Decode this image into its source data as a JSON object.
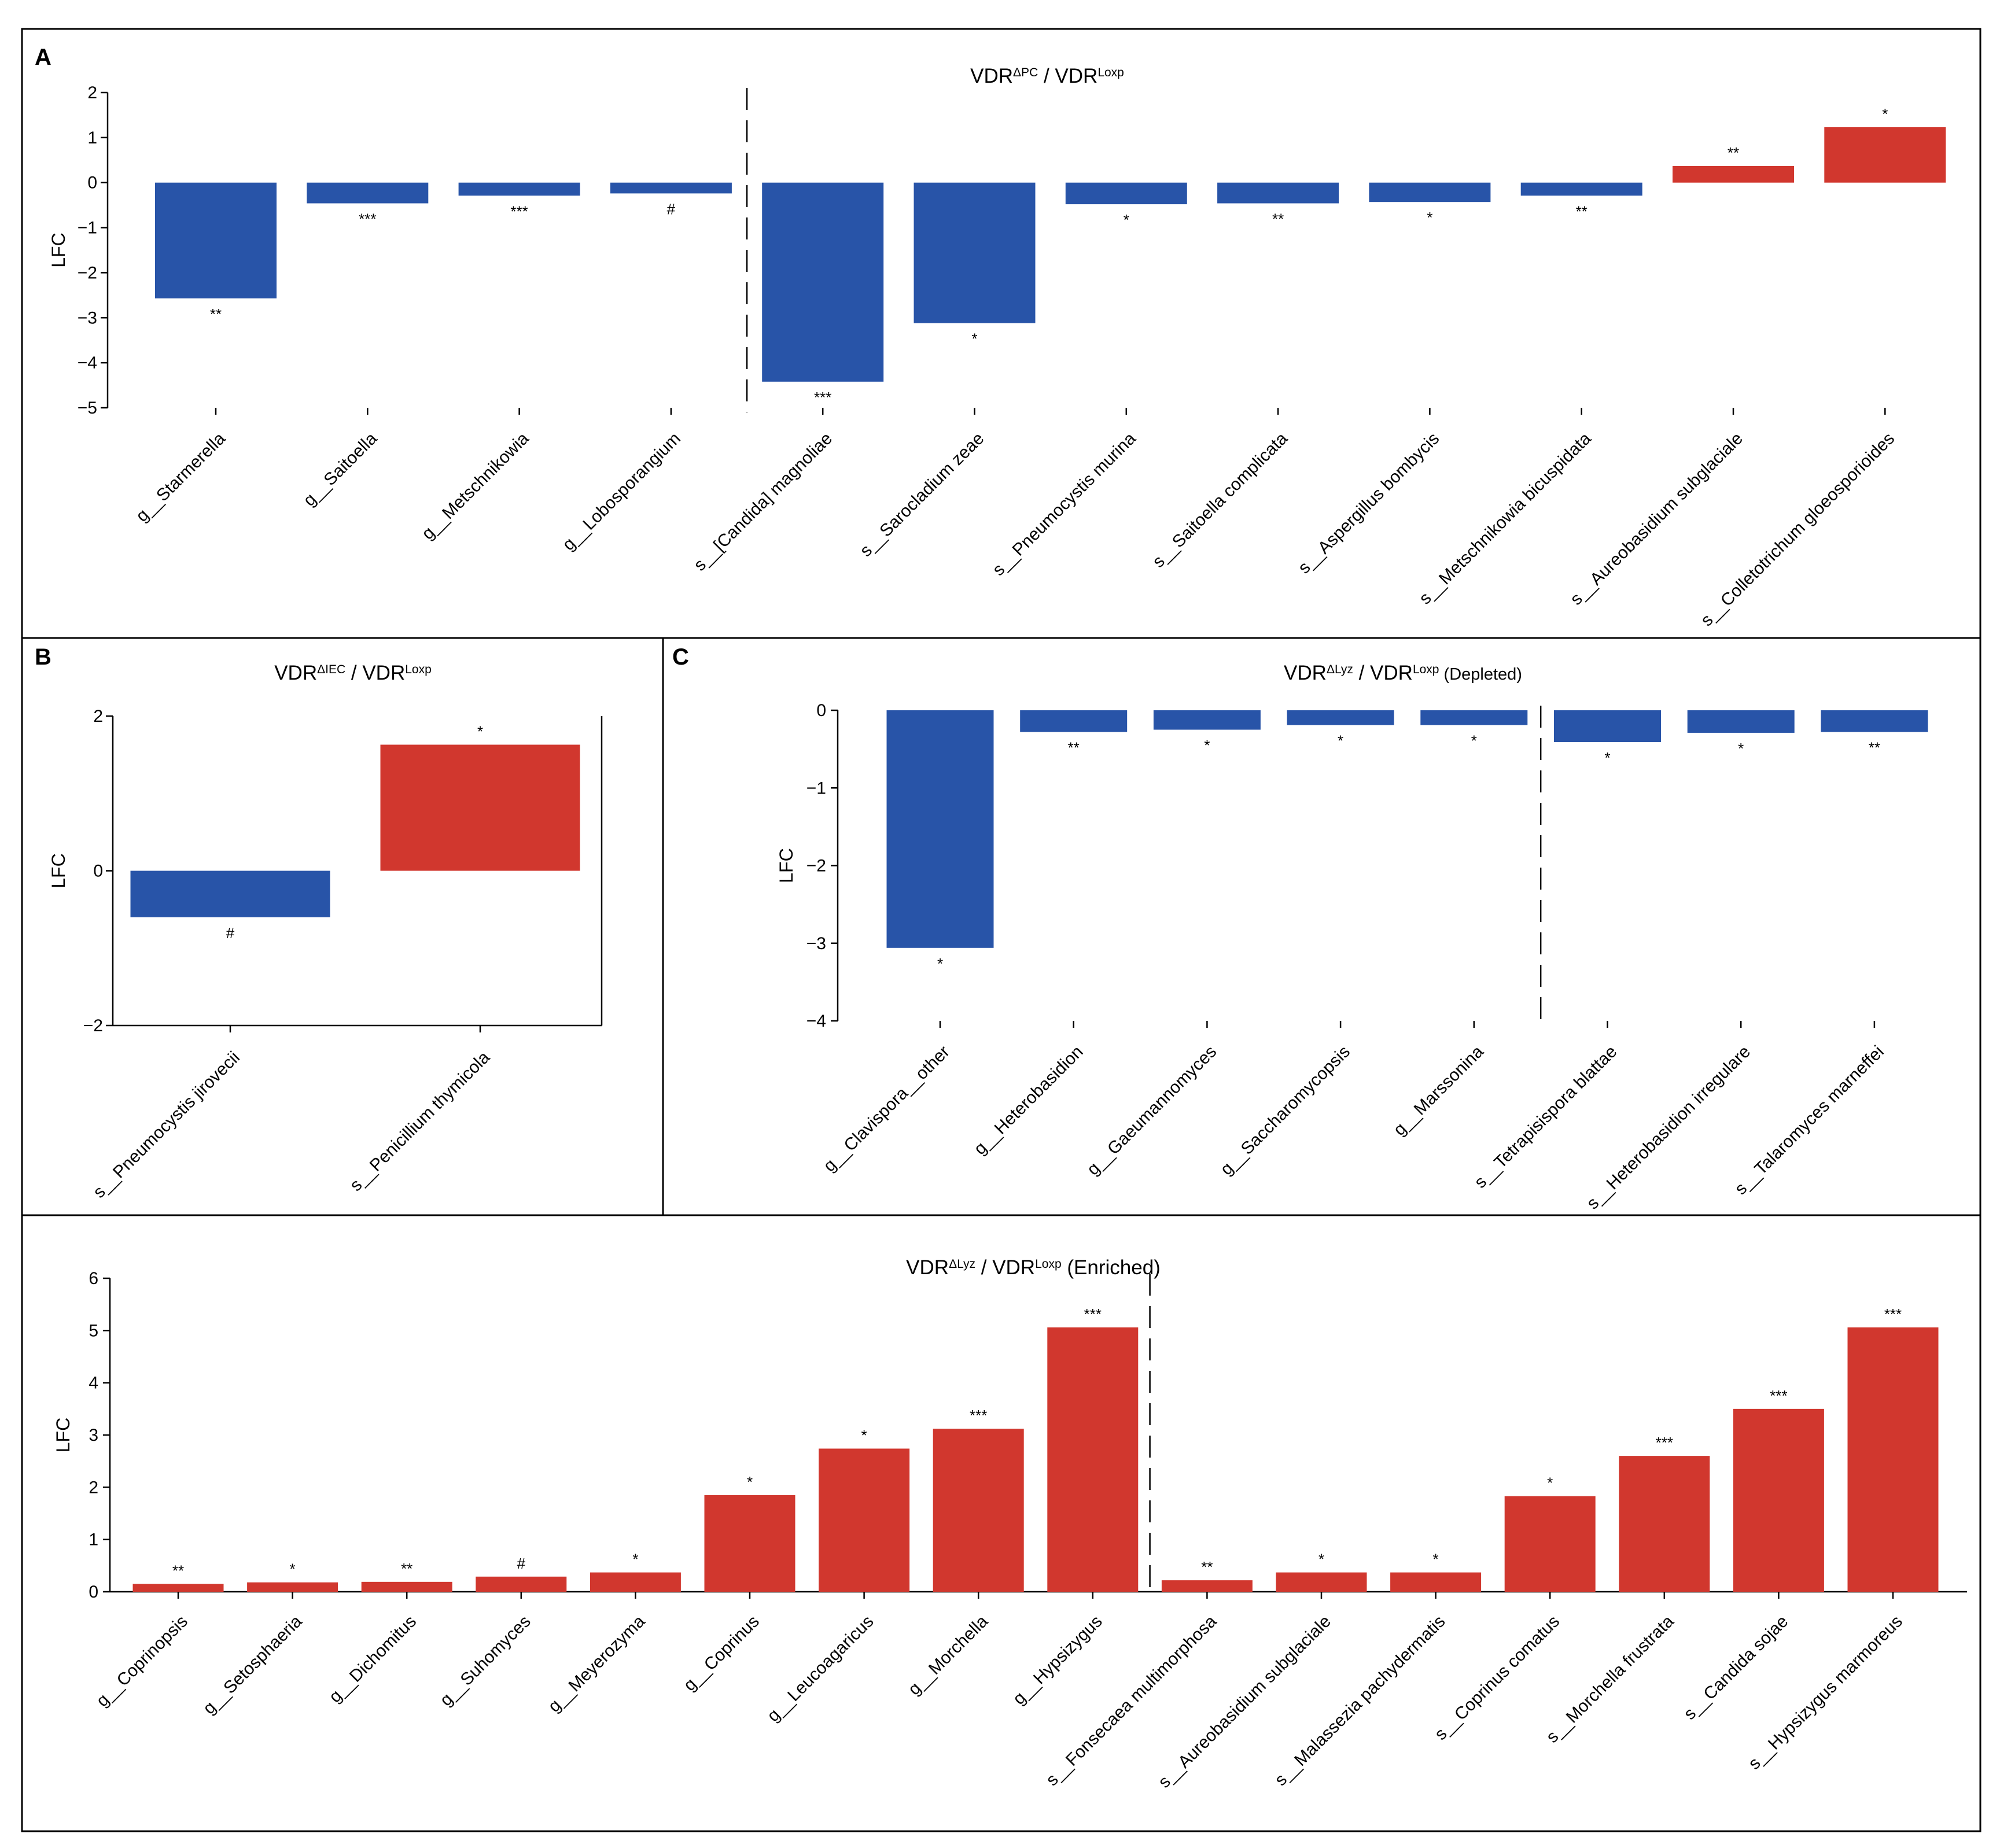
{
  "colors": {
    "decrease": "#2854a8",
    "increase": "#d1372e"
  },
  "chart_data": [
    {
      "id": "A",
      "panel_label": "A",
      "type": "bar",
      "title": {
        "main1": "VDR",
        "sup1": "ΔPC",
        "main2": " / VDR",
        "sup2": "Loxp",
        "suffix": ""
      },
      "ylabel": "LFC",
      "ylim": [
        -5,
        2
      ],
      "yticks": [
        2,
        1,
        0,
        -1,
        -2,
        -3,
        -4,
        -5
      ],
      "yticklabels": [
        "2",
        "1",
        "0",
        "−1",
        "−2",
        "−3",
        "−4",
        "−5"
      ],
      "divider_after": 4,
      "categories": [
        "g__Starmerella",
        "g__Saitoella",
        "g__Metschnikowia",
        "g__Lobosporangium",
        "s__[Candida] magnoliae",
        "s__Sarocladium zeae",
        "s__Pneumocystis murina",
        "s__Saitoella complicata",
        "s__Aspergillus bombycis",
        "s__Metschnikowia bicuspidata",
        "s__Aureobasidium subglaciale",
        "s__Colletotrichum gloeosporioides"
      ],
      "values": [
        -2.57,
        -0.46,
        -0.29,
        -0.24,
        -4.42,
        -3.12,
        -0.48,
        -0.46,
        -0.43,
        -0.29,
        0.37,
        1.23
      ],
      "significance": [
        "**",
        "***",
        "***",
        "#",
        "***",
        "*",
        "*",
        "**",
        "*",
        "**",
        "**",
        "*"
      ]
    },
    {
      "id": "B",
      "panel_label": "B",
      "type": "bar",
      "title": {
        "main1": "VDR",
        "sup1": "ΔIEC",
        "main2": " / VDR",
        "sup2": "Loxp",
        "suffix": ""
      },
      "ylabel": "LFC",
      "ylim": [
        -2,
        2
      ],
      "yticks": [
        2,
        0,
        -2
      ],
      "yticklabels": [
        "2",
        "0",
        "−2"
      ],
      "divider_after": null,
      "categories": [
        "s__Pneumocystis jirovecii",
        "s__Penicillium thymicola"
      ],
      "values": [
        -0.6,
        1.63
      ],
      "significance": [
        "#",
        "*"
      ]
    },
    {
      "id": "C",
      "panel_label": "C",
      "type": "bar",
      "title": {
        "main1": "VDR",
        "sup1": "ΔLyz",
        "main2": "  / VDR",
        "sup2": "Loxp",
        "suffix": " (Depleted)"
      },
      "ylabel": "LFC",
      "ylim": [
        -4,
        0
      ],
      "yticks": [
        0,
        -1,
        -2,
        -3,
        -4
      ],
      "yticklabels": [
        "0",
        "−1",
        "−2",
        "−3",
        "−4"
      ],
      "divider_after": 5,
      "categories": [
        "g__Clavispora__other",
        "g__Heterobasidion",
        "g__Gaeumannomyces",
        "g__Saccharomycopsis",
        "g__Marssonina",
        "s__Tetrapisispora blattae",
        "s__Heterobasidion irregulare",
        "s__Talaromyces marneffei"
      ],
      "values": [
        -3.06,
        -0.28,
        -0.25,
        -0.19,
        -0.19,
        -0.41,
        -0.29,
        -0.28
      ],
      "significance": [
        "*",
        "**",
        "*",
        "*",
        "*",
        "*",
        "*",
        "**"
      ]
    },
    {
      "id": "D",
      "panel_label": "",
      "type": "bar",
      "title": {
        "main1": "VDR",
        "sup1": "ΔLyz",
        "main2": " / VDR",
        "sup2": "Loxp",
        "suffix": " (Enriched)"
      },
      "ylabel": "LFC",
      "ylim": [
        0,
        6
      ],
      "yticks": [
        6,
        5,
        4,
        3,
        2,
        1,
        0
      ],
      "yticklabels": [
        "6",
        "5",
        "4",
        "3",
        "2",
        "1",
        "0"
      ],
      "divider_after": 9,
      "categories": [
        "g__Coprinopsis",
        "g__Setosphaeria",
        "g__Dichomitus",
        "g__Suhomyces",
        "g__Meyerozyma",
        "g__Coprinus",
        "g__Leucoagaricus",
        "g__Morchella",
        "g__Hypsizygus",
        "s__Fonsecaea multimorphosa",
        "s__Aureobasidium subglaciale",
        "s__Malassezia pachydermatis",
        "s__Coprinus comatus",
        "s__Morchella frustrata",
        "s__Candida sojae",
        "s__Hypsizygus marmoreus"
      ],
      "values": [
        0.15,
        0.18,
        0.19,
        0.29,
        0.37,
        1.85,
        2.74,
        3.12,
        5.06,
        0.22,
        0.37,
        0.37,
        1.83,
        2.6,
        3.5,
        5.06
      ],
      "significance": [
        "**",
        "*",
        "**",
        "#",
        "*",
        "*",
        "*",
        "***",
        "***",
        "**",
        "*",
        "*",
        "*",
        "***",
        "***",
        "***"
      ]
    }
  ]
}
